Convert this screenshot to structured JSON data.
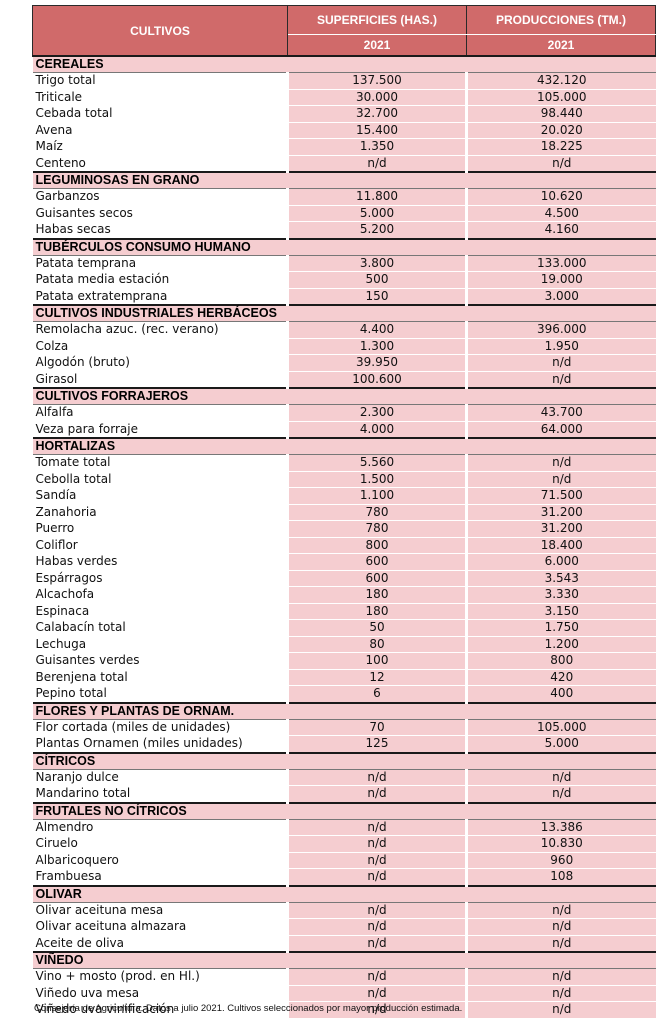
{
  "header": {
    "col_crop": "CULTIVOS",
    "col_area": "SUPERFICIES (HAS.)",
    "col_prod": "PRODUCCIONES (TM.)",
    "year_area": "2021",
    "year_prod": "2021"
  },
  "categories": [
    {
      "name": "CEREALES",
      "rows": [
        {
          "name": "Trigo total",
          "area": "137.500",
          "prod": "432.120"
        },
        {
          "name": "Triticale",
          "area": "30.000",
          "prod": "105.000"
        },
        {
          "name": "Cebada total",
          "area": "32.700",
          "prod": "98.440"
        },
        {
          "name": "Avena",
          "area": "15.400",
          "prod": "20.020"
        },
        {
          "name": "Maíz",
          "area": "1.350",
          "prod": "18.225"
        },
        {
          "name": "Centeno",
          "area": "n/d",
          "prod": "n/d"
        }
      ]
    },
    {
      "name": "LEGUMINOSAS EN GRANO",
      "rows": [
        {
          "name": "Garbanzos",
          "area": "11.800",
          "prod": "10.620"
        },
        {
          "name": "Guisantes secos",
          "area": "5.000",
          "prod": "4.500"
        },
        {
          "name": "Habas secas",
          "area": "5.200",
          "prod": "4.160"
        }
      ]
    },
    {
      "name": "TUBÉRCULOS CONSUMO HUMANO",
      "rows": [
        {
          "name": "Patata temprana",
          "area": "3.800",
          "prod": "133.000"
        },
        {
          "name": "Patata media estación",
          "area": "500",
          "prod": "19.000"
        },
        {
          "name": "Patata extratemprana",
          "area": "150",
          "prod": "3.000"
        }
      ]
    },
    {
      "name": "CULTIVOS INDUSTRIALES HERBÁCEOS",
      "rows": [
        {
          "name": "Remolacha azuc. (rec. verano)",
          "area": "4.400",
          "prod": "396.000"
        },
        {
          "name": "Colza",
          "area": "1.300",
          "prod": "1.950"
        },
        {
          "name": "Algodón (bruto)",
          "area": "39.950",
          "prod": "n/d"
        },
        {
          "name": "Girasol",
          "area": "100.600",
          "prod": "n/d"
        }
      ]
    },
    {
      "name": "CULTIVOS FORRAJEROS",
      "rows": [
        {
          "name": "Alfalfa",
          "area": "2.300",
          "prod": "43.700"
        },
        {
          "name": "Veza para forraje",
          "area": "4.000",
          "prod": "64.000"
        }
      ]
    },
    {
      "name": "HORTALIZAS",
      "rows": [
        {
          "name": "Tomate total",
          "area": "5.560",
          "prod": "n/d"
        },
        {
          "name": "Cebolla total",
          "area": "1.500",
          "prod": "n/d"
        },
        {
          "name": "Sandía",
          "area": "1.100",
          "prod": "71.500"
        },
        {
          "name": "Zanahoria",
          "area": "780",
          "prod": "31.200"
        },
        {
          "name": "Puerro",
          "area": "780",
          "prod": "31.200"
        },
        {
          "name": "Coliflor",
          "area": "800",
          "prod": "18.400"
        },
        {
          "name": "Habas verdes",
          "area": "600",
          "prod": "6.000"
        },
        {
          "name": "Espárragos",
          "area": "600",
          "prod": "3.543"
        },
        {
          "name": "Alcachofa",
          "area": "180",
          "prod": "3.330"
        },
        {
          "name": "Espinaca",
          "area": "180",
          "prod": "3.150"
        },
        {
          "name": "Calabacín total",
          "area": "50",
          "prod": "1.750"
        },
        {
          "name": "Lechuga",
          "area": "80",
          "prod": "1.200"
        },
        {
          "name": "Guisantes verdes",
          "area": "100",
          "prod": "800"
        },
        {
          "name": "Berenjena total",
          "area": "12",
          "prod": "420"
        },
        {
          "name": "Pepino total",
          "area": "6",
          "prod": "400"
        }
      ]
    },
    {
      "name": "FLORES Y PLANTAS DE ORNAM.",
      "rows": [
        {
          "name": "Flor cortada (miles de unidades)",
          "area": "70",
          "prod": "105.000"
        },
        {
          "name": "Plantas Ornamen (miles unidades)",
          "area": "125",
          "prod": "5.000"
        }
      ]
    },
    {
      "name": "CÍTRICOS",
      "rows": [
        {
          "name": "Naranjo dulce",
          "area": "n/d",
          "prod": "n/d"
        },
        {
          "name": "Mandarino total",
          "area": "n/d",
          "prod": "n/d"
        }
      ]
    },
    {
      "name": "FRUTALES NO CÍTRICOS",
      "rows": [
        {
          "name": "Almendro",
          "area": "n/d",
          "prod": "13.386"
        },
        {
          "name": "Ciruelo",
          "area": "n/d",
          "prod": "10.830"
        },
        {
          "name": "Albaricoquero",
          "area": "n/d",
          "prod": "960"
        },
        {
          "name": "Frambuesa",
          "area": "n/d",
          "prod": "108"
        }
      ]
    },
    {
      "name": "OLIVAR",
      "rows": [
        {
          "name": "Olivar aceituna mesa",
          "area": "n/d",
          "prod": "n/d"
        },
        {
          "name": "Olivar aceituna almazara",
          "area": "n/d",
          "prod": "n/d"
        },
        {
          "name": "Aceite de oliva",
          "area": "n/d",
          "prod": "n/d"
        }
      ]
    },
    {
      "name": "VIÑEDO",
      "rows": [
        {
          "name": "Vino + mosto (prod. en Hl.)",
          "area": "n/d",
          "prod": "n/d"
        },
        {
          "name": "Viñedo uva mesa",
          "area": "n/d",
          "prod": "n/d"
        },
        {
          "name": "Viñedo uva vinificación",
          "area": "n/d",
          "prod": "n/d"
        }
      ]
    }
  ],
  "footnote": "Consejería de Agricultura. Datos a julio 2021. Cultivos seleccionados por mayor producción estimada."
}
